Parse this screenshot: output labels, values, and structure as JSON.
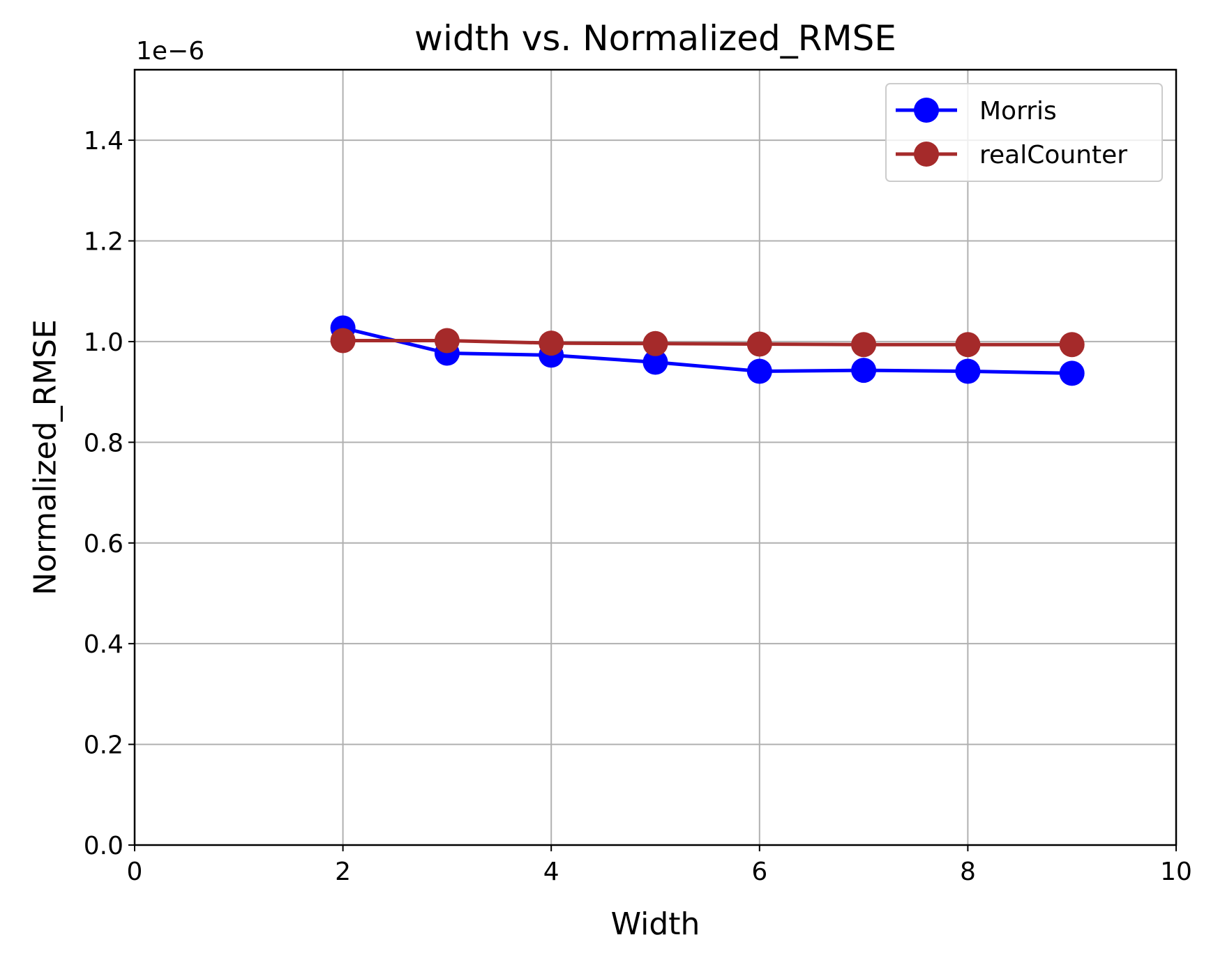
{
  "chart_data": {
    "type": "line",
    "title": "width vs. Normalized_RMSE",
    "xlabel": "Width",
    "ylabel": "Normalized_RMSE",
    "y_offset_label": "1e−6",
    "xlim": [
      0,
      10
    ],
    "ylim": [
      0.0,
      1.54
    ],
    "xticks": [
      0,
      2,
      4,
      6,
      8,
      10
    ],
    "xtick_labels": [
      "0",
      "2",
      "4",
      "6",
      "8",
      "10"
    ],
    "yticks": [
      0.0,
      0.2,
      0.4,
      0.6,
      0.8,
      1.0,
      1.2,
      1.4
    ],
    "ytick_labels": [
      "0.0",
      "0.2",
      "0.4",
      "0.6",
      "0.8",
      "1.0",
      "1.2",
      "1.4"
    ],
    "grid": true,
    "legend_position": "top-right",
    "x": [
      2,
      3,
      4,
      5,
      6,
      7,
      8,
      9
    ],
    "series": [
      {
        "name": "Morris",
        "color": "#0000ff",
        "values": [
          1.027,
          0.977,
          0.973,
          0.959,
          0.941,
          0.943,
          0.941,
          0.937
        ]
      },
      {
        "name": "realCounter",
        "color": "#a52a2a",
        "values": [
          1.002,
          1.002,
          0.997,
          0.996,
          0.995,
          0.994,
          0.994,
          0.994
        ]
      }
    ]
  }
}
